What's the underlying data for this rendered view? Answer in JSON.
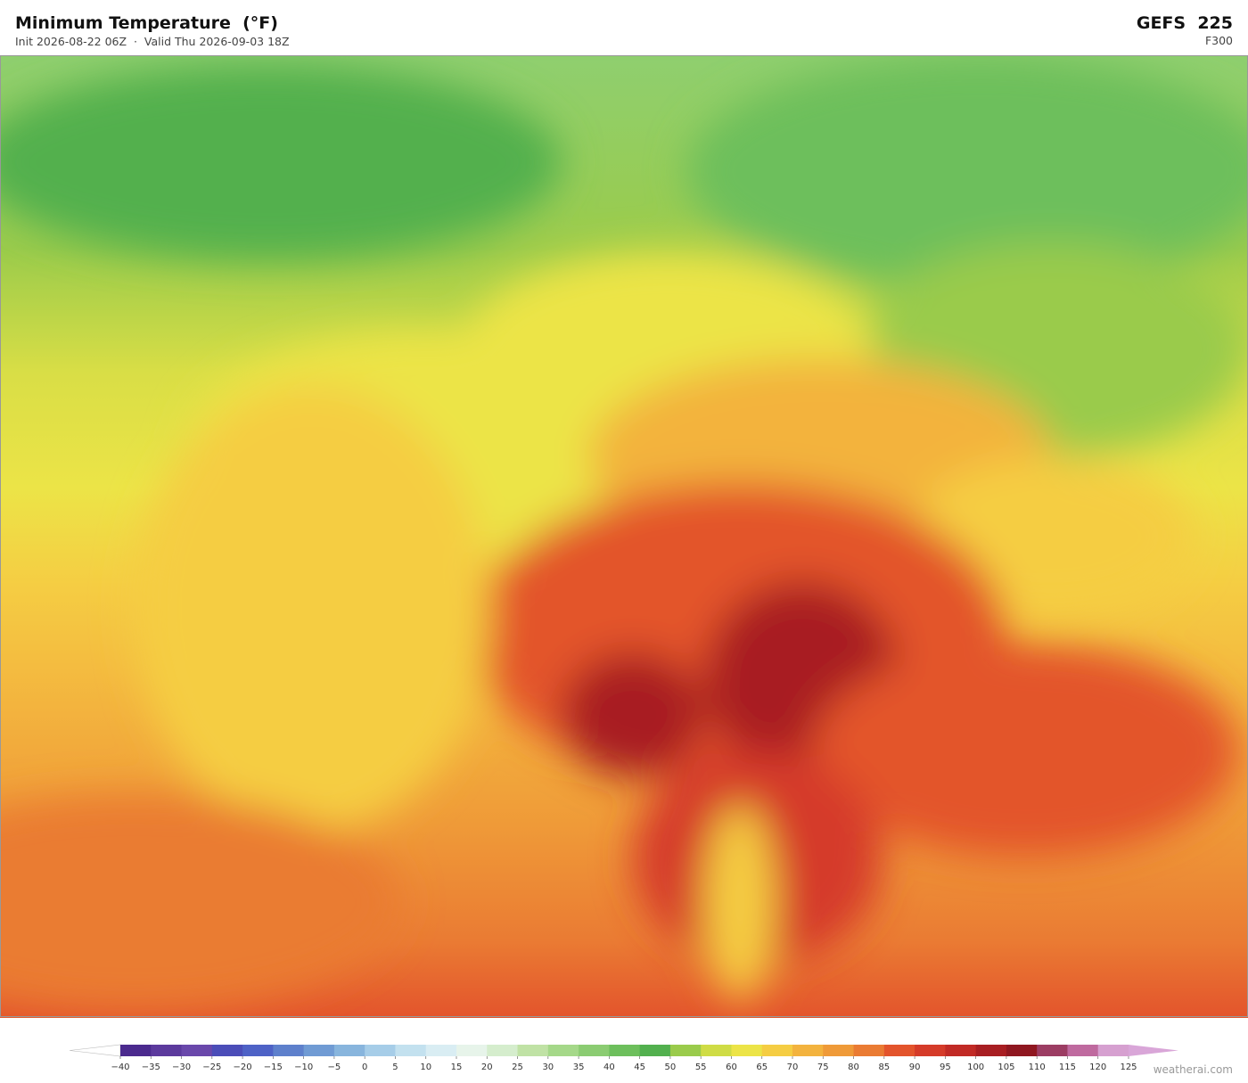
{
  "header": {
    "title": "Minimum Temperature  (°F)",
    "subtitle": "Init 2026-08-22 06Z  ·  Valid Thu 2026-09-03 18Z",
    "model": "GEFS  225",
    "forecast_hour": "F300"
  },
  "colorbar": {
    "ticks": [
      {
        "value": -40,
        "label": "−40"
      },
      {
        "value": -35,
        "label": "−35"
      },
      {
        "value": -30,
        "label": "−30"
      },
      {
        "value": -25,
        "label": "−25"
      },
      {
        "value": -20,
        "label": "−20"
      },
      {
        "value": -15,
        "label": "−15"
      },
      {
        "value": -10,
        "label": "−10"
      },
      {
        "value": -5,
        "label": "−5"
      },
      0,
      5,
      10,
      15,
      20,
      25,
      30,
      35,
      40,
      45,
      50,
      55,
      60,
      65,
      70,
      75,
      80,
      85,
      90,
      95,
      100,
      105,
      110,
      115,
      120,
      125
    ],
    "colors": [
      "#4b2a8e",
      "#5c3a9d",
      "#6a48ab",
      "#4b4db8",
      "#4e62c6",
      "#5e80cc",
      "#709bd4",
      "#88b5dd",
      "#a6cde8",
      "#c3e1ef",
      "#d9edf3",
      "#e7f4ea",
      "#d5edcd",
      "#c0e2a5",
      "#a5d889",
      "#8bcc72",
      "#6dbf5c",
      "#52b04e",
      "#9acb4b",
      "#cfdc45",
      "#ece447",
      "#f5cd43",
      "#f3b33e",
      "#ef9a38",
      "#ea7b33",
      "#e3542c",
      "#d53b29",
      "#c12a25",
      "#a81e22",
      "#8f1720",
      "#9c3d63",
      "#bf6a9f",
      "#d6a0d0"
    ],
    "under_color": "#ffffff",
    "over_color": "#d9a6d8"
  },
  "footer": {
    "credit": "weatherai.com"
  }
}
